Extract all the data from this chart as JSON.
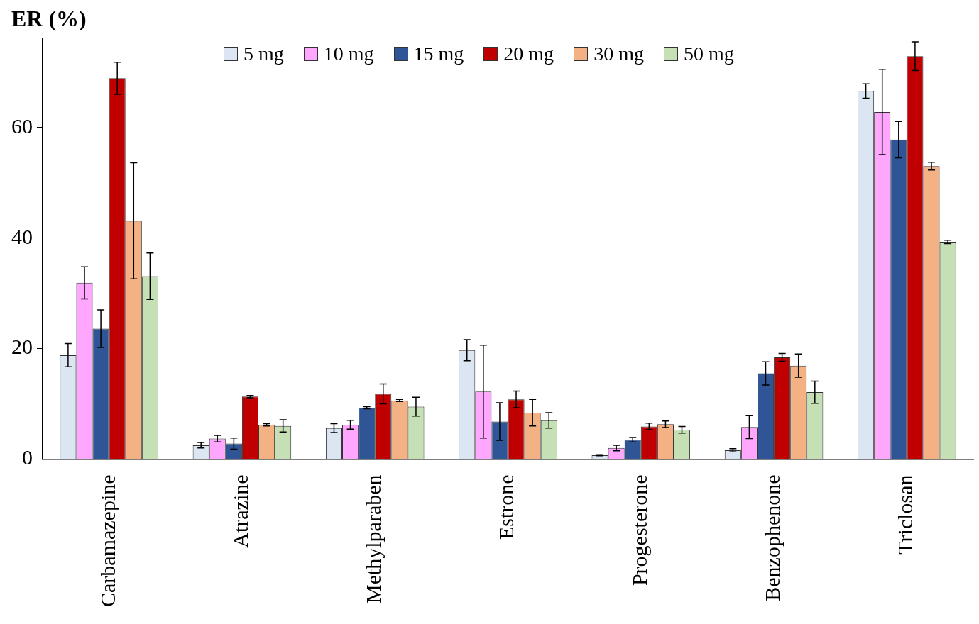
{
  "chart_data": {
    "type": "bar",
    "ylabel": "ER (%)",
    "categories": [
      "Carbamazepine",
      "Atrazine",
      "Methylparaben",
      "Estrone",
      "Progesterone",
      "Benzophenone",
      "Triclosan"
    ],
    "series": [
      {
        "name": "5 mg",
        "color": "#dce6f2",
        "values": [
          18.8,
          2.5,
          5.6,
          19.7,
          0.7,
          1.6,
          66.6
        ],
        "errors": [
          2.1,
          0.5,
          0.8,
          1.9,
          0.1,
          0.3,
          1.3
        ]
      },
      {
        "name": "10 mg",
        "color": "#ffa6ff",
        "values": [
          31.9,
          3.7,
          6.2,
          12.2,
          2.0,
          5.8,
          62.8
        ],
        "errors": [
          2.9,
          0.6,
          0.8,
          8.4,
          0.5,
          2.1,
          7.7
        ]
      },
      {
        "name": "15 mg",
        "color": "#2f5597",
        "values": [
          23.6,
          2.8,
          9.3,
          6.8,
          3.5,
          15.5,
          57.8
        ],
        "errors": [
          3.4,
          1.0,
          0.2,
          3.4,
          0.4,
          2.1,
          3.3
        ]
      },
      {
        "name": "20 mg",
        "color": "#c00000",
        "values": [
          68.9,
          11.3,
          11.8,
          10.8,
          5.9,
          18.4,
          72.9
        ],
        "errors": [
          2.9,
          0.2,
          1.8,
          1.5,
          0.6,
          0.7,
          2.6
        ]
      },
      {
        "name": "30 mg",
        "color": "#f4b183",
        "values": [
          43.1,
          6.2,
          10.6,
          8.4,
          6.3,
          16.9,
          53.0
        ],
        "errors": [
          10.5,
          0.2,
          0.2,
          2.4,
          0.6,
          2.1,
          0.7
        ]
      },
      {
        "name": "50 mg",
        "color": "#c5e0b4",
        "values": [
          33.1,
          6.0,
          9.5,
          7.0,
          5.3,
          12.1,
          39.3
        ],
        "errors": [
          4.2,
          1.1,
          1.7,
          1.4,
          0.6,
          2.0,
          0.3
        ]
      }
    ],
    "ylim": [
      0,
      76
    ],
    "yticks": [
      0,
      20,
      40,
      60
    ],
    "grid": false,
    "legend": "top"
  }
}
